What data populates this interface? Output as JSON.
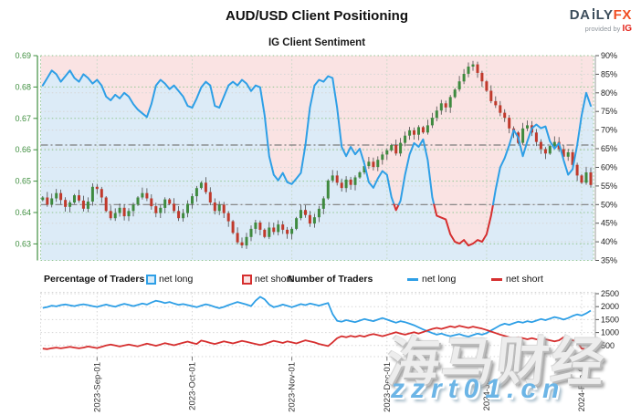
{
  "header": {
    "title": "AUD/USD Client Positioning",
    "subtitle": "IG Client Sentiment",
    "logo": {
      "da": "DA",
      "ly": "LY",
      "fx": "FX",
      "provided_by": "provided by",
      "ig": "IG"
    }
  },
  "legend": {
    "percentage_title": "Percentage of Traders",
    "number_title": "Number of Traders",
    "net_long_label": "net long",
    "net_short_label": "net short"
  },
  "watermark": {
    "cjk": "海马财经",
    "url": "zzrt01.cn"
  },
  "colors": {
    "sentiment_blue": "#2e9fe6",
    "sentiment_red": "#d62f2f",
    "candle_up": "#3f8a3f",
    "candle_down": "#c0392b",
    "bg_above": "#fae3e3",
    "bg_below": "#dcebf7",
    "price_axis_green": "#3f8f3f",
    "logo_fx": "#f04e23",
    "logo_ig": "#e4251c"
  },
  "chart_data": {
    "type": "mixed",
    "title": "AUD/USD Client Positioning",
    "subtitle": "IG Client Sentiment",
    "x_axis": {
      "n_points": 122,
      "months": [
        {
          "index": 12,
          "label": "2023-Sep-01"
        },
        {
          "index": 33,
          "label": "2023-Oct-01"
        },
        {
          "index": 55,
          "label": "2023-Nov-01"
        },
        {
          "index": 76,
          "label": "2023-Dec-01"
        },
        {
          "index": 98,
          "label": "2024-Jan-01"
        },
        {
          "index": 119,
          "label": "2024-Feb-01"
        }
      ]
    },
    "main": {
      "type": "candlestick+line",
      "price_axis": {
        "side": "left",
        "top": 0.69,
        "ticks": [
          0.69,
          0.68,
          0.67,
          0.66,
          0.65,
          0.64,
          0.63
        ]
      },
      "pct_axis": {
        "side": "right",
        "max": 90,
        "min": 35,
        "ticks": [
          90,
          85,
          80,
          75,
          70,
          65,
          60,
          55,
          50,
          45,
          40,
          35
        ]
      },
      "reference_lines_pct": [
        66,
        50
      ],
      "sentiment_pct_net_long": [
        82,
        84,
        86,
        85,
        83,
        84.5,
        86,
        84,
        83,
        85,
        84,
        82.5,
        83.5,
        82,
        79,
        78,
        79.5,
        78.5,
        80,
        79,
        77,
        75.5,
        74.5,
        73.5,
        77,
        82,
        83.5,
        82.5,
        81,
        82,
        80.5,
        79,
        76.5,
        76,
        78.5,
        81.5,
        83,
        82,
        76.5,
        76,
        79,
        82,
        83,
        82,
        83.5,
        82.5,
        80.5,
        82,
        81.5,
        74,
        63,
        58,
        56.5,
        58.5,
        56,
        55.5,
        57,
        58.5,
        66,
        76,
        82,
        83.5,
        83,
        84.5,
        84,
        76,
        65.5,
        63,
        65.5,
        63.5,
        65,
        61,
        56,
        54.5,
        57,
        59,
        58,
        52,
        48.5,
        51,
        58,
        63.5,
        66.5,
        65.5,
        67.5,
        62,
        52,
        47,
        46.5,
        46,
        42,
        40,
        39.5,
        40.5,
        39,
        39.5,
        40.5,
        40,
        42,
        47,
        54,
        60,
        62.5,
        66,
        70,
        68,
        63,
        67,
        70.5,
        71.5,
        70.5,
        71,
        67,
        65,
        66.5,
        62,
        58,
        59.5,
        66,
        74,
        80,
        76.5
      ],
      "price_closes": [
        0.6448,
        0.6425,
        0.6445,
        0.6462,
        0.644,
        0.6418,
        0.6432,
        0.6455,
        0.6438,
        0.6412,
        0.6435,
        0.6482,
        0.6475,
        0.6448,
        0.6405,
        0.6382,
        0.6398,
        0.6415,
        0.6388,
        0.6405,
        0.6425,
        0.6448,
        0.6462,
        0.6445,
        0.642,
        0.6398,
        0.6415,
        0.6442,
        0.6428,
        0.6405,
        0.6382,
        0.6398,
        0.6428,
        0.6452,
        0.6478,
        0.6495,
        0.6465,
        0.6432,
        0.6405,
        0.6425,
        0.6398,
        0.6372,
        0.6335,
        0.6305,
        0.6295,
        0.6322,
        0.6348,
        0.6368,
        0.6345,
        0.6322,
        0.6352,
        0.6338,
        0.6362,
        0.6345,
        0.6332,
        0.6348,
        0.6382,
        0.6408,
        0.6392,
        0.6365,
        0.6385,
        0.6412,
        0.6445,
        0.6502,
        0.6518,
        0.6495,
        0.6478,
        0.6505,
        0.6488,
        0.6512,
        0.6528,
        0.6548,
        0.6562,
        0.6545,
        0.6568,
        0.6585,
        0.6598,
        0.6615,
        0.6588,
        0.6622,
        0.6645,
        0.6662,
        0.6648,
        0.6672,
        0.6655,
        0.6678,
        0.6702,
        0.6725,
        0.6748,
        0.6735,
        0.6768,
        0.6792,
        0.6818,
        0.6842,
        0.6865,
        0.6872,
        0.6845,
        0.6818,
        0.6788,
        0.6755,
        0.6742,
        0.6718,
        0.6702,
        0.6668,
        0.6655,
        0.6622,
        0.6668,
        0.6678,
        0.6655,
        0.6625,
        0.6602,
        0.6588,
        0.6612,
        0.6625,
        0.6602,
        0.6578,
        0.6592,
        0.6552,
        0.6518,
        0.6495,
        0.6528,
        0.6488
      ]
    },
    "bottom": {
      "type": "line",
      "axis_ticks": [
        2500,
        2000,
        1500,
        1000,
        500
      ],
      "net_long_count": [
        1950,
        1985,
        2040,
        2010,
        2060,
        2085,
        2050,
        2020,
        2065,
        2090,
        2060,
        2020,
        1990,
        2040,
        2080,
        2035,
        1995,
        2060,
        2110,
        2070,
        2020,
        2070,
        2120,
        2080,
        2160,
        2230,
        2190,
        2140,
        2180,
        2120,
        2070,
        2100,
        2060,
        2020,
        1980,
        2040,
        2090,
        2050,
        1990,
        1940,
        1990,
        2060,
        2120,
        2180,
        2130,
        2080,
        2020,
        2230,
        2380,
        2280,
        2080,
        1980,
        2020,
        2080,
        2030,
        1980,
        2040,
        2100,
        2060,
        2120,
        2080,
        2040,
        2090,
        2140,
        1720,
        1450,
        1420,
        1480,
        1440,
        1400,
        1460,
        1520,
        1480,
        1440,
        1500,
        1560,
        1500,
        1440,
        1380,
        1440,
        1400,
        1340,
        1280,
        1200,
        1120,
        1050,
        980,
        920,
        960,
        900,
        860,
        900,
        940,
        880,
        840,
        900,
        960,
        920,
        980,
        1080,
        1180,
        1280,
        1340,
        1300,
        1360,
        1420,
        1380,
        1440,
        1400,
        1460,
        1520,
        1480,
        1540,
        1600,
        1560,
        1500,
        1560,
        1640,
        1700,
        1660,
        1740,
        1850
      ],
      "net_short_count": [
        380,
        360,
        395,
        420,
        390,
        420,
        450,
        420,
        390,
        420,
        460,
        430,
        400,
        450,
        500,
        540,
        500,
        460,
        500,
        540,
        500,
        470,
        520,
        570,
        530,
        490,
        540,
        590,
        550,
        510,
        560,
        610,
        650,
        600,
        560,
        690,
        650,
        600,
        560,
        610,
        660,
        620,
        580,
        630,
        680,
        640,
        600,
        560,
        520,
        560,
        620,
        680,
        640,
        600,
        660,
        620,
        580,
        640,
        700,
        660,
        620,
        560,
        520,
        480,
        620,
        780,
        860,
        820,
        870,
        830,
        880,
        840,
        900,
        940,
        900,
        860,
        910,
        960,
        1010,
        960,
        920,
        970,
        1010,
        960,
        1020,
        1080,
        1140,
        1180,
        1140,
        1190,
        1240,
        1200,
        1260,
        1220,
        1180,
        1230,
        1190,
        1150,
        1100,
        1040,
        980,
        920,
        870,
        820,
        780,
        820,
        780,
        740,
        780,
        740,
        700,
        740,
        700,
        660,
        700,
        820,
        760,
        700,
        660,
        380,
        360,
        460
      ]
    }
  }
}
